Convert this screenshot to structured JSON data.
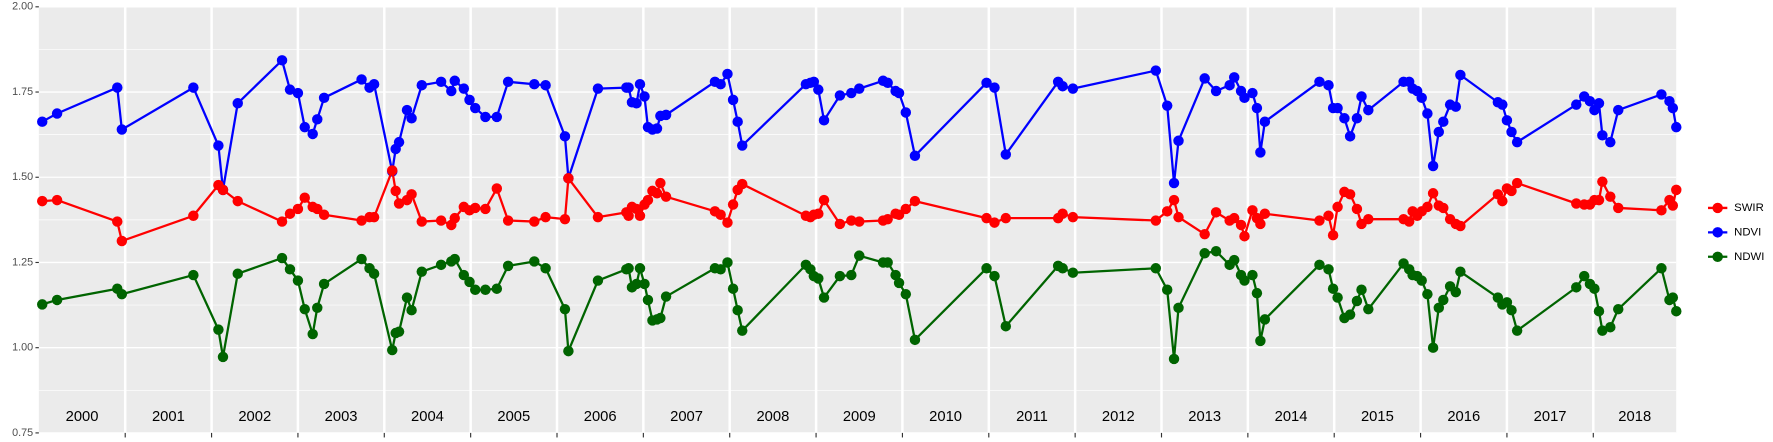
{
  "chart_data": {
    "type": "line",
    "x": [
      2000.039,
      2000.211,
      2000.908,
      2000.961,
      2001.789,
      2002.079,
      2002.132,
      2002.303,
      2002.816,
      2002.908,
      2003.0,
      2003.079,
      2003.171,
      2003.224,
      2003.303,
      2003.737,
      2003.829,
      2003.882,
      2004.092,
      2004.132,
      2004.171,
      2004.263,
      2004.316,
      2004.434,
      2004.658,
      2004.776,
      2004.816,
      2004.921,
      2004.987,
      2005.053,
      2005.171,
      2005.303,
      2005.434,
      2005.737,
      2005.868,
      2006.092,
      2006.132,
      2006.474,
      2006.803,
      2006.829,
      2006.868,
      2006.921,
      2006.961,
      2007.013,
      2007.053,
      2007.105,
      2007.158,
      2007.197,
      2007.263,
      2007.829,
      2007.895,
      2007.974,
      2008.039,
      2008.092,
      2008.145,
      2008.882,
      2008.934,
      2008.974,
      2009.026,
      2009.092,
      2009.276,
      2009.408,
      2009.5,
      2009.776,
      2009.829,
      2009.921,
      2009.961,
      2010.039,
      2010.145,
      2010.974,
      2011.066,
      2011.197,
      2011.803,
      2011.855,
      2011.974,
      2012.934,
      2013.066,
      2013.145,
      2013.197,
      2013.5,
      2013.632,
      2013.789,
      2013.842,
      2013.921,
      2013.961,
      2014.053,
      2014.105,
      2014.145,
      2014.197,
      2014.829,
      2014.934,
      2014.987,
      2015.039,
      2015.118,
      2015.184,
      2015.263,
      2015.316,
      2015.395,
      2015.803,
      2015.868,
      2015.908,
      2015.961,
      2016.013,
      2016.079,
      2016.145,
      2016.211,
      2016.263,
      2016.342,
      2016.408,
      2016.461,
      2016.895,
      2016.947,
      2017.0,
      2017.053,
      2017.118,
      2017.803,
      2017.895,
      2017.961,
      2018.013,
      2018.066,
      2018.105,
      2018.197,
      2018.289,
      2018.789,
      2018.882,
      2018.921,
      2018.961
    ],
    "series": [
      {
        "name": "SWIR",
        "color": "#ff0000",
        "values": [
          1.43,
          1.433,
          1.37,
          1.313,
          1.387,
          1.477,
          1.463,
          1.43,
          1.37,
          1.393,
          1.407,
          1.44,
          1.413,
          1.407,
          1.39,
          1.373,
          1.383,
          1.383,
          1.52,
          1.46,
          1.423,
          1.433,
          1.45,
          1.37,
          1.373,
          1.36,
          1.38,
          1.413,
          1.403,
          1.41,
          1.407,
          1.467,
          1.373,
          1.37,
          1.383,
          1.377,
          1.497,
          1.383,
          1.397,
          1.387,
          1.413,
          1.407,
          1.387,
          1.42,
          1.433,
          1.46,
          1.453,
          1.483,
          1.443,
          1.4,
          1.39,
          1.367,
          1.42,
          1.463,
          1.48,
          1.387,
          1.383,
          1.39,
          1.393,
          1.433,
          1.363,
          1.373,
          1.37,
          1.373,
          1.377,
          1.393,
          1.39,
          1.407,
          1.43,
          1.38,
          1.367,
          1.38,
          1.38,
          1.393,
          1.383,
          1.373,
          1.4,
          1.433,
          1.383,
          1.333,
          1.397,
          1.373,
          1.38,
          1.36,
          1.327,
          1.403,
          1.38,
          1.363,
          1.393,
          1.373,
          1.387,
          1.33,
          1.413,
          1.457,
          1.45,
          1.407,
          1.363,
          1.377,
          1.377,
          1.37,
          1.4,
          1.387,
          1.4,
          1.413,
          1.453,
          1.417,
          1.41,
          1.377,
          1.363,
          1.357,
          1.45,
          1.43,
          1.467,
          1.46,
          1.483,
          1.423,
          1.42,
          1.42,
          1.433,
          1.433,
          1.487,
          1.443,
          1.41,
          1.403,
          1.433,
          1.417,
          1.463
        ]
      },
      {
        "name": "NDVI",
        "color": "#0000ff",
        "values": [
          1.663,
          1.687,
          1.763,
          1.64,
          1.763,
          1.593,
          1.463,
          1.717,
          1.843,
          1.757,
          1.747,
          1.647,
          1.627,
          1.67,
          1.733,
          1.787,
          1.763,
          1.773,
          1.517,
          1.583,
          1.603,
          1.697,
          1.673,
          1.77,
          1.78,
          1.753,
          1.783,
          1.76,
          1.727,
          1.703,
          1.677,
          1.677,
          1.78,
          1.773,
          1.77,
          1.62,
          1.497,
          1.76,
          1.763,
          1.763,
          1.72,
          1.717,
          1.773,
          1.737,
          1.647,
          1.64,
          1.643,
          1.68,
          1.683,
          1.78,
          1.773,
          1.803,
          1.727,
          1.663,
          1.593,
          1.773,
          1.777,
          1.78,
          1.757,
          1.667,
          1.74,
          1.747,
          1.76,
          1.783,
          1.777,
          1.753,
          1.747,
          1.69,
          1.563,
          1.777,
          1.763,
          1.567,
          1.78,
          1.767,
          1.76,
          1.813,
          1.71,
          1.483,
          1.607,
          1.79,
          1.753,
          1.77,
          1.793,
          1.753,
          1.733,
          1.747,
          1.703,
          1.573,
          1.663,
          1.78,
          1.77,
          1.703,
          1.703,
          1.673,
          1.62,
          1.673,
          1.737,
          1.697,
          1.78,
          1.78,
          1.76,
          1.753,
          1.733,
          1.687,
          1.533,
          1.633,
          1.663,
          1.713,
          1.707,
          1.8,
          1.72,
          1.713,
          1.667,
          1.633,
          1.603,
          1.713,
          1.737,
          1.723,
          1.697,
          1.717,
          1.623,
          1.603,
          1.697,
          1.743,
          1.723,
          1.703,
          1.647
        ]
      },
      {
        "name": "NDWI",
        "color": "#006400",
        "values": [
          1.127,
          1.14,
          1.173,
          1.157,
          1.213,
          1.053,
          0.973,
          1.217,
          1.263,
          1.23,
          1.197,
          1.113,
          1.04,
          1.117,
          1.187,
          1.26,
          1.233,
          1.217,
          0.993,
          1.043,
          1.047,
          1.147,
          1.11,
          1.223,
          1.243,
          1.253,
          1.26,
          1.213,
          1.193,
          1.17,
          1.17,
          1.173,
          1.24,
          1.253,
          1.233,
          1.113,
          0.99,
          1.197,
          1.23,
          1.233,
          1.177,
          1.187,
          1.233,
          1.187,
          1.14,
          1.08,
          1.083,
          1.087,
          1.15,
          1.233,
          1.23,
          1.25,
          1.173,
          1.11,
          1.05,
          1.243,
          1.23,
          1.21,
          1.203,
          1.147,
          1.21,
          1.213,
          1.27,
          1.25,
          1.25,
          1.213,
          1.19,
          1.157,
          1.023,
          1.233,
          1.21,
          1.063,
          1.24,
          1.233,
          1.22,
          1.233,
          1.17,
          0.967,
          1.117,
          1.277,
          1.283,
          1.243,
          1.257,
          1.213,
          1.197,
          1.213,
          1.16,
          1.02,
          1.083,
          1.243,
          1.23,
          1.173,
          1.147,
          1.087,
          1.097,
          1.137,
          1.17,
          1.113,
          1.247,
          1.23,
          1.213,
          1.21,
          1.197,
          1.157,
          1.0,
          1.117,
          1.14,
          1.18,
          1.163,
          1.223,
          1.147,
          1.127,
          1.133,
          1.11,
          1.05,
          1.177,
          1.21,
          1.187,
          1.173,
          1.107,
          1.05,
          1.06,
          1.113,
          1.233,
          1.14,
          1.147,
          1.107
        ]
      }
    ],
    "xlim": [
      2000,
      2018.96
    ],
    "xticks": [
      2001,
      2002,
      2003,
      2004,
      2005,
      2006,
      2007,
      2008,
      2009,
      2010,
      2011,
      2012,
      2013,
      2014,
      2015,
      2016,
      2017,
      2018
    ],
    "year_labels": [
      "2000",
      "2001",
      "2002",
      "2003",
      "2004",
      "2005",
      "2006",
      "2007",
      "2008",
      "2009",
      "2010",
      "2011",
      "2012",
      "2013",
      "2014",
      "2015",
      "2016",
      "2017",
      "2018"
    ],
    "ylim": [
      0.75,
      2.0
    ],
    "yticks": [
      0.75,
      {
        "value": 1.0,
        "label": "1.00"
      },
      1.25,
      {
        "value": 1.5,
        "label": "1.50"
      },
      1.75,
      {
        "value": 2.0,
        "label": "2.00"
      }
    ],
    "grid": true,
    "legend": "right"
  }
}
